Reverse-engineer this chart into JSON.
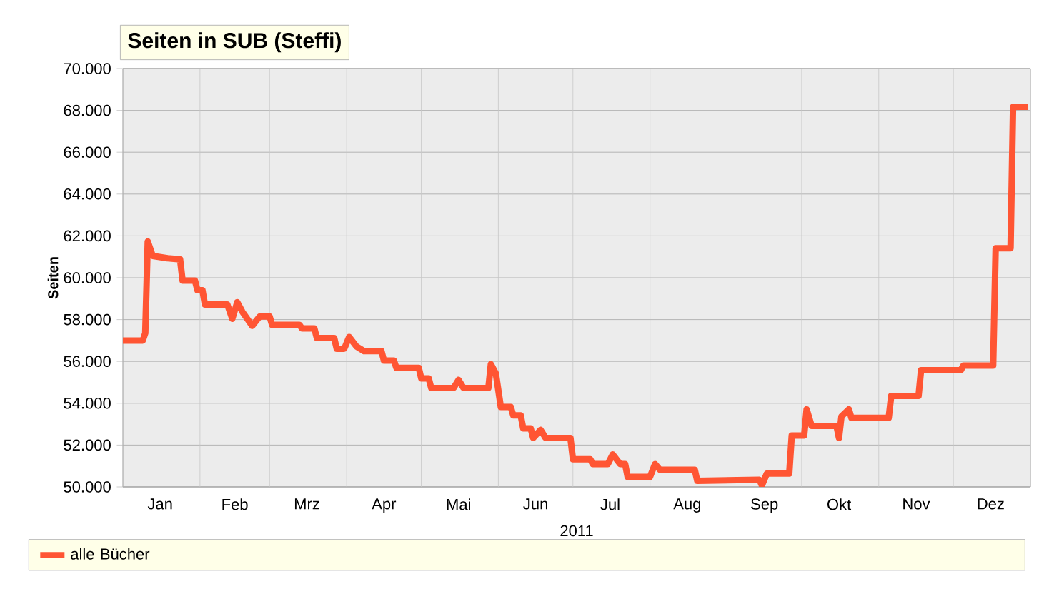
{
  "chart_data": {
    "type": "line",
    "title": "Seiten in SUB (Steffi)",
    "xlabel": "2011",
    "ylabel": "Seiten",
    "x": [
      "2011-01-01",
      "2011-01-09",
      "2011-01-10",
      "2011-01-11",
      "2011-01-13",
      "2011-01-19",
      "2011-01-24",
      "2011-01-25",
      "2011-01-30",
      "2011-01-31",
      "2011-02-02",
      "2011-02-03",
      "2011-02-12",
      "2011-02-14",
      "2011-02-16",
      "2011-02-18",
      "2011-02-22",
      "2011-02-25",
      "2011-03-01",
      "2011-03-02",
      "2011-03-13",
      "2011-03-14",
      "2011-03-19",
      "2011-03-20",
      "2011-03-27",
      "2011-03-28",
      "2011-03-31",
      "2011-04-02",
      "2011-04-05",
      "2011-04-08",
      "2011-04-15",
      "2011-04-16",
      "2011-04-20",
      "2011-04-21",
      "2011-04-30",
      "2011-05-01",
      "2011-05-04",
      "2011-05-05",
      "2011-05-14",
      "2011-05-16",
      "2011-05-18",
      "2011-05-28",
      "2011-05-29",
      "2011-05-31",
      "2011-06-02",
      "2011-06-06",
      "2011-06-07",
      "2011-06-10",
      "2011-06-11",
      "2011-06-14",
      "2011-06-15",
      "2011-06-18",
      "2011-06-20",
      "2011-06-30",
      "2011-07-01",
      "2011-07-08",
      "2011-07-09",
      "2011-07-15",
      "2011-07-17",
      "2011-07-20",
      "2011-07-22",
      "2011-07-23",
      "2011-08-01",
      "2011-08-03",
      "2011-08-05",
      "2011-08-19",
      "2011-08-20",
      "2011-09-14",
      "2011-09-15",
      "2011-09-17",
      "2011-09-26",
      "2011-09-27",
      "2011-10-02",
      "2011-10-03",
      "2011-10-05",
      "2011-10-15",
      "2011-10-16",
      "2011-10-17",
      "2011-10-20",
      "2011-10-21",
      "2011-11-05",
      "2011-11-06",
      "2011-11-17",
      "2011-11-18",
      "2011-12-04",
      "2011-12-05",
      "2011-12-17",
      "2011-12-18",
      "2011-12-24",
      "2011-12-25",
      "2011-12-31"
    ],
    "series": [
      {
        "name": "alle Bücher",
        "color": "#ff5533",
        "values": [
          57000,
          57000,
          57350,
          61730,
          61040,
          60930,
          60880,
          59860,
          59860,
          59400,
          59400,
          58720,
          58720,
          58040,
          58830,
          58380,
          57700,
          58150,
          58150,
          57750,
          57750,
          57580,
          57580,
          57120,
          57120,
          56600,
          56600,
          57170,
          56710,
          56490,
          56490,
          56040,
          56040,
          55690,
          55690,
          55190,
          55190,
          54730,
          54730,
          55120,
          54730,
          54730,
          55870,
          55420,
          53820,
          53820,
          53420,
          53420,
          52800,
          52800,
          52340,
          52730,
          52340,
          52340,
          51320,
          51320,
          51090,
          51090,
          51550,
          51090,
          51090,
          50480,
          50480,
          51090,
          50820,
          50820,
          50290,
          50340,
          50070,
          50640,
          50640,
          52460,
          52460,
          53710,
          52920,
          52920,
          52340,
          53370,
          53710,
          53300,
          53300,
          54350,
          54350,
          55580,
          55580,
          55800,
          55800,
          61410,
          61410,
          68170,
          68170
        ]
      }
    ],
    "xlim": [
      "2011-01-01",
      "2012-01-01"
    ],
    "xticks": [
      {
        "value": "2011-01-01",
        "label": null
      },
      {
        "value": "2011-01-16",
        "label": "Jan"
      },
      {
        "value": "2011-02-01",
        "label": null
      },
      {
        "value": "2011-02-15",
        "label": "Feb"
      },
      {
        "value": "2011-03-01",
        "label": null
      },
      {
        "value": "2011-03-16",
        "label": "Mrz"
      },
      {
        "value": "2011-04-01",
        "label": null
      },
      {
        "value": "2011-04-16",
        "label": "Apr"
      },
      {
        "value": "2011-05-01",
        "label": null
      },
      {
        "value": "2011-05-16",
        "label": "Mai"
      },
      {
        "value": "2011-06-01",
        "label": null
      },
      {
        "value": "2011-06-16",
        "label": "Jun"
      },
      {
        "value": "2011-07-01",
        "label": null
      },
      {
        "value": "2011-07-16",
        "label": "Jul"
      },
      {
        "value": "2011-08-01",
        "label": null
      },
      {
        "value": "2011-08-16",
        "label": "Aug"
      },
      {
        "value": "2011-09-01",
        "label": null
      },
      {
        "value": "2011-09-16",
        "label": "Sep"
      },
      {
        "value": "2011-10-01",
        "label": null
      },
      {
        "value": "2011-10-16",
        "label": "Okt"
      },
      {
        "value": "2011-11-01",
        "label": null
      },
      {
        "value": "2011-11-16",
        "label": "Nov"
      },
      {
        "value": "2011-12-01",
        "label": null
      },
      {
        "value": "2011-12-16",
        "label": "Dez"
      },
      {
        "value": "2012-01-01",
        "label": null
      }
    ],
    "ylim": [
      50000,
      70000
    ],
    "yticks": [
      {
        "value": 50000,
        "label": "50.000"
      },
      {
        "value": 52000,
        "label": "52.000"
      },
      {
        "value": 54000,
        "label": "54.000"
      },
      {
        "value": 56000,
        "label": "56.000"
      },
      {
        "value": 58000,
        "label": "58.000"
      },
      {
        "value": 60000,
        "label": "60.000"
      },
      {
        "value": 62000,
        "label": "62.000"
      },
      {
        "value": 64000,
        "label": "64.000"
      },
      {
        "value": 66000,
        "label": "66.000"
      },
      {
        "value": 68000,
        "label": "68.000"
      },
      {
        "value": 70000,
        "label": "70.000"
      }
    ],
    "grid": true,
    "legend": "bottom",
    "marker": "none",
    "line_style": "solid"
  }
}
